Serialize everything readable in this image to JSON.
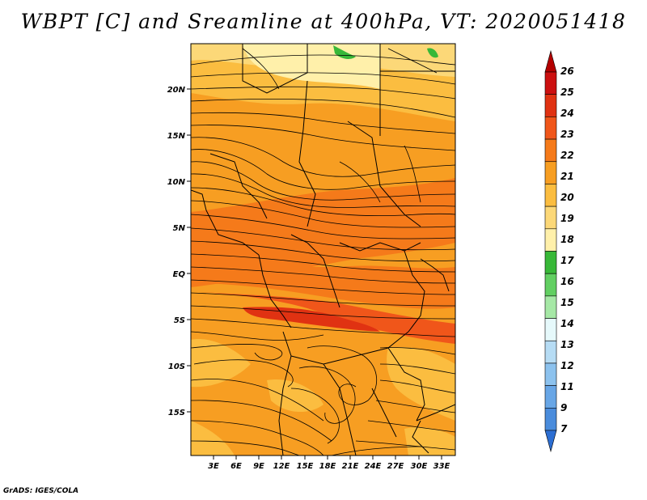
{
  "title": "WBPT [C] and Sreamline at 400hPa, VT: 2020051418",
  "footer": "GrADS: IGES/COLA",
  "map": {
    "lat_labels": [
      "20N",
      "15N",
      "10N",
      "5N",
      "EQ",
      "5S",
      "10S",
      "15S"
    ],
    "lon_labels": [
      "3E",
      "6E",
      "9E",
      "12E",
      "15E",
      "18E",
      "21E",
      "24E",
      "27E",
      "30E",
      "33E"
    ]
  },
  "colorbar": {
    "labels": [
      "26",
      "25",
      "24",
      "23",
      "22",
      "21",
      "20",
      "19",
      "18",
      "17",
      "16",
      "15",
      "14",
      "13",
      "12",
      "11",
      "9",
      "7"
    ],
    "colors": [
      "#b40000",
      "#cc1010",
      "#e03212",
      "#f0561a",
      "#f57a1a",
      "#f79e22",
      "#fbbd40",
      "#fcd878",
      "#fff0aa",
      "#38b838",
      "#62cf62",
      "#a6e8a6",
      "#e6f9fb",
      "#b6dcf4",
      "#8cc2ee",
      "#68a6e6",
      "#4a8cdc",
      "#2c6ed2"
    ]
  }
}
